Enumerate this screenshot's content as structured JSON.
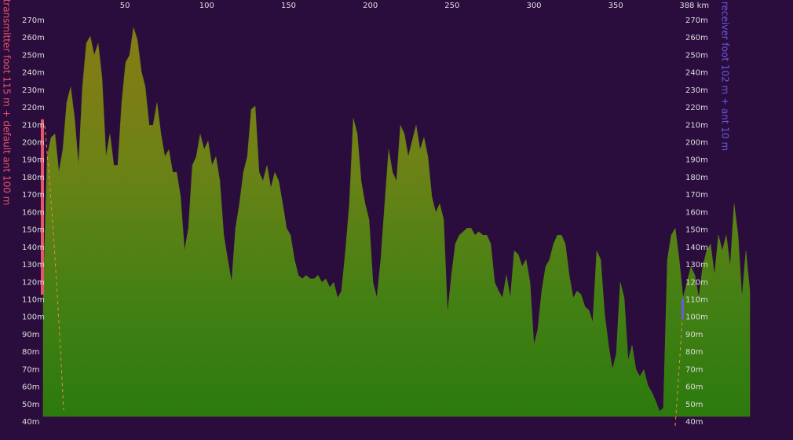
{
  "chart_data": {
    "type": "area",
    "transmitter_label": "transmitter foot 115 m + default ant 100 m",
    "receiver_label": "receiver foot 102 m + ant 10 m",
    "transmitter_color": "#e8546a",
    "receiver_color": "#6a5ae0",
    "xlim": [
      0,
      432
    ],
    "ylim": [
      40,
      270
    ],
    "xticks": [
      50,
      100,
      150,
      200,
      250,
      300,
      350,
      {
        "value": 388,
        "label": "388 km"
      }
    ],
    "yticks": [
      {
        "value": 40,
        "label": "40m"
      },
      {
        "value": 50,
        "label": "50m"
      },
      {
        "value": 60,
        "label": "60m"
      },
      {
        "value": 70,
        "label": "70m"
      },
      {
        "value": 80,
        "label": "80m"
      },
      {
        "value": 90,
        "label": "90m"
      },
      {
        "value": 100,
        "label": "100m"
      },
      {
        "value": 110,
        "label": "110m"
      },
      {
        "value": 120,
        "label": "120m"
      },
      {
        "value": 130,
        "label": "130m"
      },
      {
        "value": 140,
        "label": "140m"
      },
      {
        "value": 150,
        "label": "150m"
      },
      {
        "value": 160,
        "label": "160m"
      },
      {
        "value": 170,
        "label": "170m"
      },
      {
        "value": 180,
        "label": "180m"
      },
      {
        "value": 190,
        "label": "190m"
      },
      {
        "value": 200,
        "label": "200m"
      },
      {
        "value": 210,
        "label": "210m"
      },
      {
        "value": 220,
        "label": "220m"
      },
      {
        "value": 230,
        "label": "230m"
      },
      {
        "value": 240,
        "label": "240m"
      },
      {
        "value": 250,
        "label": "250m"
      },
      {
        "value": 260,
        "label": "260m"
      },
      {
        "value": 270,
        "label": "270m"
      }
    ],
    "x": [
      0,
      2.4,
      4.8,
      7.2,
      9.6,
      12,
      14.4,
      16.8,
      19.2,
      21.6,
      24,
      26.4,
      28.8,
      31.2,
      33.6,
      36,
      38.4,
      40.8,
      43.2,
      45.6,
      48,
      50.4,
      52.8,
      55.2,
      57.6,
      60,
      62.4,
      64.8,
      67.2,
      69.6,
      72,
      74.4,
      76.8,
      79.2,
      81.6,
      84,
      86.4,
      88.8,
      91.2,
      93.6,
      96,
      98.4,
      100.8,
      103.2,
      105.6,
      108,
      110.4,
      112.8,
      115.2,
      117.6,
      120,
      122.4,
      124.8,
      127.2,
      129.6,
      132,
      134.4,
      136.8,
      139.2,
      141.6,
      144,
      146.4,
      148.8,
      151.2,
      153.6,
      156,
      158.4,
      160.8,
      163.2,
      165.6,
      168,
      170.4,
      172.8,
      175.2,
      177.6,
      180,
      182.4,
      184.8,
      187.2,
      189.6,
      192,
      194.4,
      196.8,
      199.2,
      201.6,
      204,
      206.4,
      208.8,
      211.2,
      213.6,
      216,
      218.4,
      220.8,
      223.2,
      225.6,
      228,
      230.4,
      232.8,
      235.2,
      237.6,
      240,
      242.4,
      244.8,
      247.2,
      249.6,
      252,
      254.4,
      256.8,
      259.2,
      261.6,
      264,
      266.4,
      268.8,
      271.2,
      273.6,
      276,
      278.4,
      280.8,
      283.2,
      285.6,
      288,
      290.4,
      292.8,
      295.2,
      297.6,
      300,
      302.4,
      304.8,
      307.2,
      309.6,
      312,
      314.4,
      316.8,
      319.2,
      321.6,
      324,
      326.4,
      328.8,
      331.2,
      333.6,
      336,
      338.4,
      340.8,
      343.2,
      345.6,
      348,
      350.4,
      352.8,
      355.2,
      357.6,
      360,
      362.4,
      364.8,
      367.2,
      369.6,
      372,
      374.4,
      376.8,
      379.2,
      381.6,
      384,
      386.4,
      388.8,
      391.2,
      393.6,
      396,
      398.4,
      400.8,
      403.2,
      405.6,
      408,
      410.4,
      412.8,
      415.2,
      417.6,
      420,
      422.4,
      424.8,
      427.2,
      429.6,
      432
    ],
    "values": [
      110,
      192,
      203,
      205,
      183,
      196,
      223,
      232,
      214,
      187,
      232,
      257,
      261,
      250,
      257,
      237,
      192,
      205,
      187,
      187,
      223,
      246,
      250,
      266,
      259,
      241,
      232,
      210,
      210,
      223,
      205,
      192,
      196,
      183,
      183,
      169,
      138,
      151,
      187,
      192,
      205,
      196,
      201,
      187,
      192,
      178,
      147,
      133,
      120,
      151,
      165,
      183,
      192,
      219,
      221,
      183,
      178,
      187,
      174,
      183,
      178,
      165,
      151,
      147,
      133,
      124,
      122,
      124,
      122,
      122,
      124,
      120,
      122,
      117,
      120,
      111,
      115,
      138,
      165,
      214,
      205,
      178,
      165,
      156,
      120,
      111,
      133,
      165,
      196,
      183,
      178,
      210,
      205,
      192,
      201,
      210,
      196,
      203,
      192,
      169,
      160,
      165,
      156,
      102,
      124,
      142,
      147,
      149,
      151,
      151,
      147,
      149,
      147,
      147,
      142,
      120,
      115,
      111,
      124,
      111,
      138,
      136,
      129,
      133,
      120,
      84,
      93,
      115,
      129,
      133,
      142,
      147,
      147,
      142,
      124,
      111,
      115,
      113,
      106,
      104,
      97,
      138,
      133,
      102,
      84,
      70,
      79,
      120,
      111,
      75,
      84,
      70,
      66,
      70,
      61,
      57,
      52,
      46,
      48,
      133,
      147,
      151,
      133,
      111,
      120,
      129,
      124,
      111,
      129,
      138,
      142,
      124,
      147,
      138,
      147,
      129,
      165,
      147,
      111,
      138,
      115
    ]
  }
}
